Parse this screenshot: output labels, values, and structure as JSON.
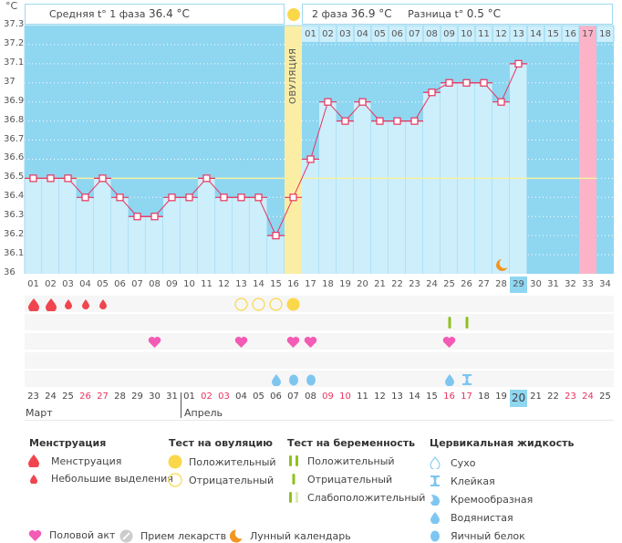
{
  "unit_label": "°C",
  "header": {
    "phase1_label": "Средняя t° 1 фаза",
    "phase1_value": "36.4 °C",
    "phase2_label": "2 фаза",
    "phase2_value": "36.9 °C",
    "diff_label": "Разница t°",
    "diff_value": "0.5 °C",
    "ovulation_label": "ОВУЛЯЦИЯ"
  },
  "chart_data": {
    "type": "line",
    "title": "",
    "xlabel": "",
    "ylabel": "°C",
    "ylim": [
      36.0,
      37.3
    ],
    "yticks": [
      "37.3",
      "37.2",
      "37.1",
      "37",
      "36.9",
      "36.8",
      "36.7",
      "36.6",
      "36.5",
      "36.4",
      "36.3",
      "36.2",
      "36.1",
      "36"
    ],
    "cycle_days": [
      "01",
      "02",
      "03",
      "04",
      "05",
      "06",
      "07",
      "08",
      "09",
      "10",
      "11",
      "12",
      "13",
      "14",
      "15",
      "16",
      "17",
      "18",
      "19",
      "20",
      "21",
      "22",
      "23",
      "24",
      "25",
      "26",
      "27",
      "28",
      "29",
      "30",
      "31",
      "32",
      "33",
      "34"
    ],
    "phase2_days": [
      "01",
      "02",
      "03",
      "04",
      "05",
      "06",
      "07",
      "08",
      "09",
      "10",
      "11",
      "12",
      "13",
      "14",
      "15",
      "16",
      "17",
      "18"
    ],
    "series": [
      {
        "name": "Базальная температура",
        "values": [
          36.5,
          36.5,
          36.5,
          36.4,
          36.5,
          36.4,
          36.3,
          36.3,
          36.4,
          36.4,
          36.5,
          36.4,
          36.4,
          36.4,
          36.2,
          36.4,
          36.6,
          36.9,
          36.8,
          36.9,
          36.8,
          36.8,
          36.8,
          36.95,
          37.0,
          37.0,
          37.0,
          36.9,
          37.1,
          null,
          null,
          null,
          null,
          null
        ]
      }
    ],
    "coverline": 36.5,
    "ovulation_day": 16,
    "today_cycle_day": 29,
    "expected_period_day": 33,
    "moon_day": 28,
    "grid": true,
    "legend": "none"
  },
  "dates": {
    "days": [
      {
        "d": "23",
        "w": false
      },
      {
        "d": "24",
        "w": false
      },
      {
        "d": "25",
        "w": false
      },
      {
        "d": "26",
        "w": true
      },
      {
        "d": "27",
        "w": true
      },
      {
        "d": "28",
        "w": false
      },
      {
        "d": "29",
        "w": false
      },
      {
        "d": "30",
        "w": false
      },
      {
        "d": "31",
        "w": false
      },
      {
        "d": "01",
        "w": false
      },
      {
        "d": "02",
        "w": true
      },
      {
        "d": "03",
        "w": true
      },
      {
        "d": "04",
        "w": false
      },
      {
        "d": "05",
        "w": false
      },
      {
        "d": "06",
        "w": false
      },
      {
        "d": "07",
        "w": false
      },
      {
        "d": "08",
        "w": false
      },
      {
        "d": "09",
        "w": true
      },
      {
        "d": "10",
        "w": true
      },
      {
        "d": "11",
        "w": false
      },
      {
        "d": "12",
        "w": false
      },
      {
        "d": "13",
        "w": false
      },
      {
        "d": "14",
        "w": false
      },
      {
        "d": "15",
        "w": false
      },
      {
        "d": "16",
        "w": true
      },
      {
        "d": "17",
        "w": true
      },
      {
        "d": "18",
        "w": false
      },
      {
        "d": "19",
        "w": false
      },
      {
        "d": "20",
        "w": false,
        "today": true
      },
      {
        "d": "21",
        "w": false
      },
      {
        "d": "22",
        "w": false
      },
      {
        "d": "23",
        "w": true
      },
      {
        "d": "24",
        "w": true
      },
      {
        "d": "25",
        "w": false
      }
    ],
    "month1": "Март",
    "month2": "Апрель"
  },
  "symbols": {
    "menstruation": [
      {
        "day": 1,
        "type": "heavy"
      },
      {
        "day": 2,
        "type": "heavy"
      },
      {
        "day": 3,
        "type": "light"
      },
      {
        "day": 4,
        "type": "light"
      },
      {
        "day": 5,
        "type": "light"
      }
    ],
    "ovulation_test": [
      {
        "day": 13,
        "type": "negative"
      },
      {
        "day": 14,
        "type": "negative"
      },
      {
        "day": 15,
        "type": "negative"
      },
      {
        "day": 16,
        "type": "positive"
      }
    ],
    "pregnancy_test": [
      {
        "day": 25,
        "type": "negative"
      },
      {
        "day": 26,
        "type": "negative"
      }
    ],
    "intercourse": [
      8,
      13,
      16,
      17,
      25
    ],
    "cervical_fluid": [
      {
        "day": 15,
        "type": "watery"
      },
      {
        "day": 16,
        "type": "eggwhite"
      },
      {
        "day": 17,
        "type": "eggwhite"
      },
      {
        "day": 25,
        "type": "watery"
      },
      {
        "day": 26,
        "type": "sticky"
      }
    ]
  },
  "legend": {
    "menstruation": {
      "title": "Менструация",
      "items": [
        "Менструация",
        "Небольшие выделения"
      ]
    },
    "ovulation_test": {
      "title": "Тест на овуляцию",
      "items": [
        "Положительный",
        "Отрицательный"
      ]
    },
    "pregnancy_test": {
      "title": "Тест на беременность",
      "items": [
        "Положительный",
        "Отрицательный",
        "Слабоположительный"
      ]
    },
    "cervical_fluid": {
      "title": "Цервикальная жидкость",
      "items": [
        "Сухо",
        "Клейкая",
        "Кремообразная",
        "Водянистая",
        "Яичный белок"
      ]
    },
    "other": [
      "Половой акт",
      "Прием лекарств",
      "Лунный календарь"
    ]
  },
  "colors": {
    "sky": "#8fd6f1",
    "bar": "#cdeefb",
    "line": "#e8335d",
    "ovulation": "#fbeea4",
    "period": "#fcb3c8",
    "coverline": "#f5f0a0",
    "blood": "#f0454e",
    "heart": "#f45bb5",
    "yellow": "#fbd74a",
    "green": "#8ec21c",
    "green_light": "#d8ecb4",
    "drop_blue": "#7ec6f0",
    "moon": "#f3951e",
    "pill": "#cccccc"
  }
}
